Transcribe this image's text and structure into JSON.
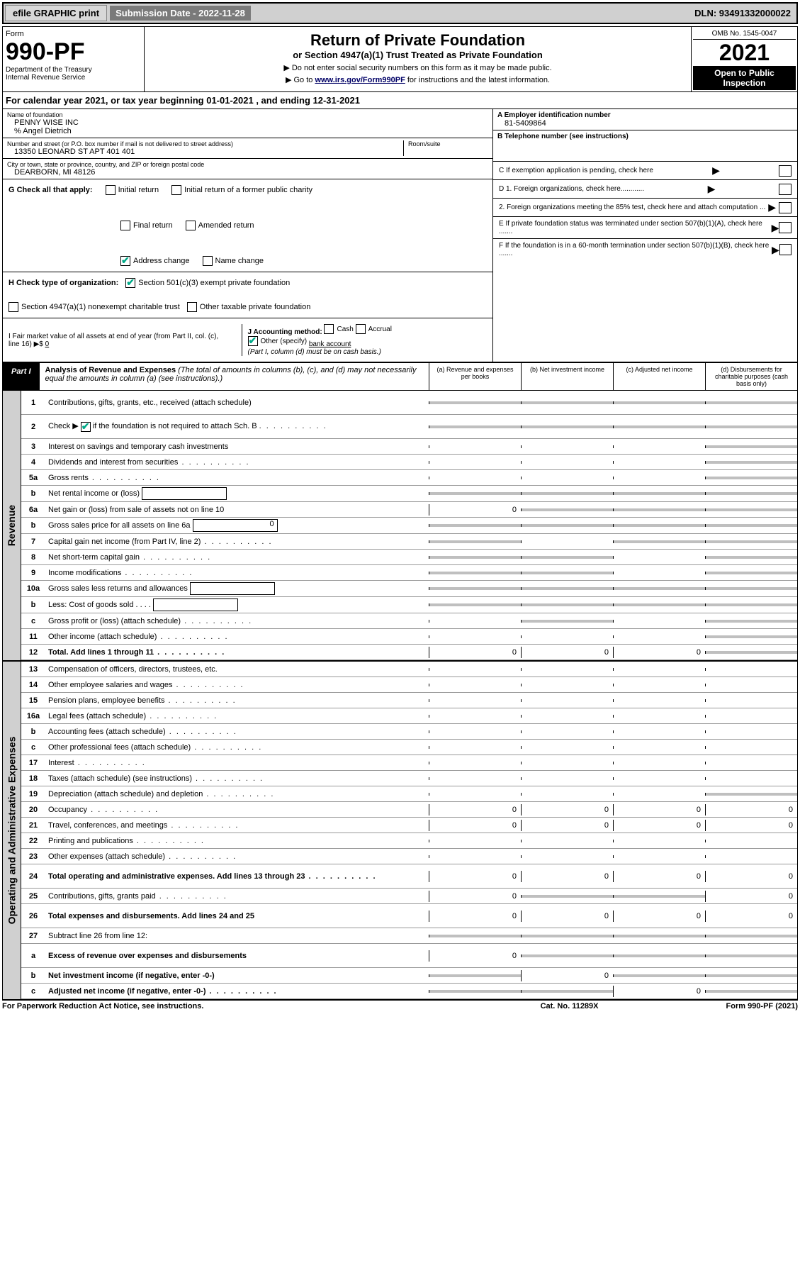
{
  "top": {
    "efile": "efile GRAPHIC print",
    "sub_date_label": "Submission Date - 2022-11-28",
    "dln": "DLN: 93491332000022"
  },
  "header": {
    "form_word": "Form",
    "form_num": "990-PF",
    "dept": "Department of the Treasury\nInternal Revenue Service",
    "title": "Return of Private Foundation",
    "subtitle": "or Section 4947(a)(1) Trust Treated as Private Foundation",
    "instr1": "▶ Do not enter social security numbers on this form as it may be made public.",
    "instr2_a": "▶ Go to ",
    "instr2_link": "www.irs.gov/Form990PF",
    "instr2_b": " for instructions and the latest information.",
    "omb": "OMB No. 1545-0047",
    "year": "2021",
    "open": "Open to Public Inspection"
  },
  "cal_year": "For calendar year 2021, or tax year beginning 01-01-2021            , and ending 12-31-2021",
  "foundation": {
    "name_label": "Name of foundation",
    "name": "PENNY WISE INC",
    "pct": "% Angel Dietrich",
    "addr_label": "Number and street (or P.O. box number if mail is not delivered to street address)",
    "addr": "13350 LEONARD ST APT 401 401",
    "room_label": "Room/suite",
    "city_label": "City or town, state or province, country, and ZIP or foreign postal code",
    "city": "DEARBORN, MI  48126"
  },
  "right_info": {
    "a_label": "A Employer identification number",
    "a_val": "81-5409864",
    "b_label": "B Telephone number (see instructions)",
    "c_label": "C If exemption application is pending, check here",
    "d1": "D 1. Foreign organizations, check here............",
    "d2": "2. Foreign organizations meeting the 85% test, check here and attach computation ...",
    "e": "E  If private foundation status was terminated under section 507(b)(1)(A), check here .......",
    "f": "F  If the foundation is in a 60-month termination under section 507(b)(1)(B), check here .......",
    "arrow": "▶"
  },
  "g": {
    "label": "G Check all that apply:",
    "initial": "Initial return",
    "initial_former": "Initial return of a former public charity",
    "final": "Final return",
    "amended": "Amended return",
    "addr_change": "Address change",
    "name_change": "Name change"
  },
  "h": {
    "label": "H Check type of organization:",
    "opt1": "Section 501(c)(3) exempt private foundation",
    "opt2": "Section 4947(a)(1) nonexempt charitable trust",
    "opt3": "Other taxable private foundation"
  },
  "i": {
    "label": "I Fair market value of all assets at end of year (from Part II, col. (c), line 16) ▶$ ",
    "val": "0"
  },
  "j": {
    "label": "J Accounting method:",
    "cash": "Cash",
    "accrual": "Accrual",
    "other": "Other (specify)",
    "other_val": "bank account",
    "note": "(Part I, column (d) must be on cash basis.)"
  },
  "part1": {
    "tag": "Part I",
    "title": "Analysis of Revenue and Expenses",
    "desc": " (The total of amounts in columns (b), (c), and (d) may not necessarily equal the amounts in column (a) (see instructions).)",
    "col_a": "(a)  Revenue and expenses per books",
    "col_b": "(b)  Net investment income",
    "col_c": "(c)  Adjusted net income",
    "col_d": "(d)  Disbursements for charitable purposes (cash basis only)"
  },
  "sides": {
    "rev": "Revenue",
    "exp": "Operating and Administrative Expenses"
  },
  "lines": {
    "1": "Contributions, gifts, grants, etc., received (attach schedule)",
    "2a": "Check ▶",
    "2b": " if the foundation is not required to attach Sch. B",
    "3": "Interest on savings and temporary cash investments",
    "4": "Dividends and interest from securities",
    "5a": "Gross rents",
    "5b": "Net rental income or (loss)",
    "6a": "Net gain or (loss) from sale of assets not on line 10",
    "6b": "Gross sales price for all assets on line 6a",
    "6b_val": "0",
    "7": "Capital gain net income (from Part IV, line 2)",
    "8": "Net short-term capital gain",
    "9": "Income modifications",
    "10a": "Gross sales less returns and allowances",
    "10b": "Less: Cost of goods sold",
    "10c": "Gross profit or (loss) (attach schedule)",
    "11": "Other income (attach schedule)",
    "12": "Total. Add lines 1 through 11",
    "13": "Compensation of officers, directors, trustees, etc.",
    "14": "Other employee salaries and wages",
    "15": "Pension plans, employee benefits",
    "16a": "Legal fees (attach schedule)",
    "16b": "Accounting fees (attach schedule)",
    "16c": "Other professional fees (attach schedule)",
    "17": "Interest",
    "18": "Taxes (attach schedule) (see instructions)",
    "19": "Depreciation (attach schedule) and depletion",
    "20": "Occupancy",
    "21": "Travel, conferences, and meetings",
    "22": "Printing and publications",
    "23": "Other expenses (attach schedule)",
    "24": "Total operating and administrative expenses. Add lines 13 through 23",
    "25": "Contributions, gifts, grants paid",
    "26": "Total expenses and disbursements. Add lines 24 and 25",
    "27": "Subtract line 26 from line 12:",
    "27a": "Excess of revenue over expenses and disbursements",
    "27b": "Net investment income (if negative, enter -0-)",
    "27c": "Adjusted net income (if negative, enter -0-)"
  },
  "vals": {
    "6a_a": "0",
    "12_a": "0",
    "12_b": "0",
    "12_c": "0",
    "20_a": "0",
    "20_b": "0",
    "20_c": "0",
    "20_d": "0",
    "21_a": "0",
    "21_b": "0",
    "21_c": "0",
    "21_d": "0",
    "24_a": "0",
    "24_b": "0",
    "24_c": "0",
    "24_d": "0",
    "25_a": "0",
    "25_d": "0",
    "26_a": "0",
    "26_b": "0",
    "26_c": "0",
    "26_d": "0",
    "27a_a": "0",
    "27b_b": "0",
    "27c_c": "0"
  },
  "footer": {
    "left": "For Paperwork Reduction Act Notice, see instructions.",
    "mid": "Cat. No. 11289X",
    "right": "Form 990-PF (2021)"
  }
}
